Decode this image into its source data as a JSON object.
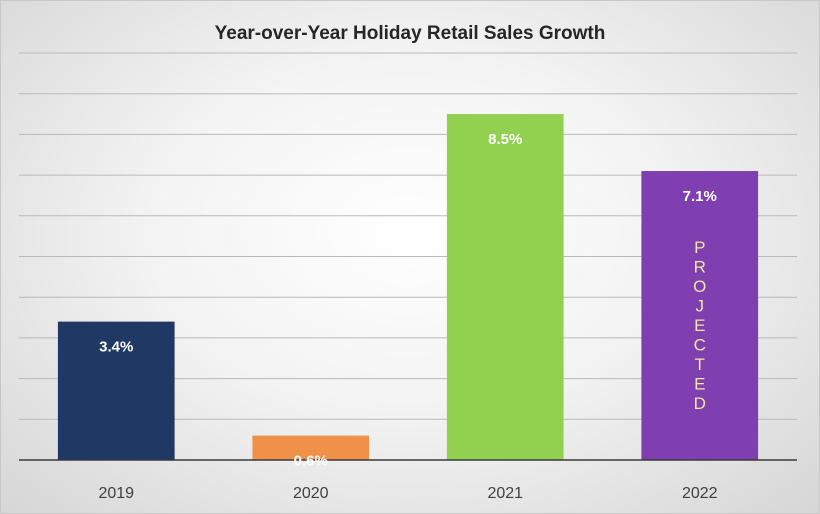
{
  "chart_data": {
    "type": "bar",
    "title": "Year-over-Year Holiday Retail Sales Growth",
    "xlabel": "",
    "ylabel": "",
    "categories": [
      "2019",
      "2020",
      "2021",
      "2022"
    ],
    "values": [
      3.4,
      0.6,
      8.5,
      7.1
    ],
    "data_labels": [
      "3.4%",
      "0.6%",
      "8.5%",
      "7.1%"
    ],
    "colors": [
      "#1f3864",
      "#f0914a",
      "#92d050",
      "#7f3fb0"
    ],
    "ylim": [
      0,
      10
    ],
    "y_gridline_step": 1,
    "grid": true,
    "y_tick_labels_shown": false,
    "legend": "none",
    "annotation": {
      "category": "2022",
      "text": "PROJECTED",
      "orientation": "vertical-stacked",
      "color": "#f2e6a6"
    }
  }
}
